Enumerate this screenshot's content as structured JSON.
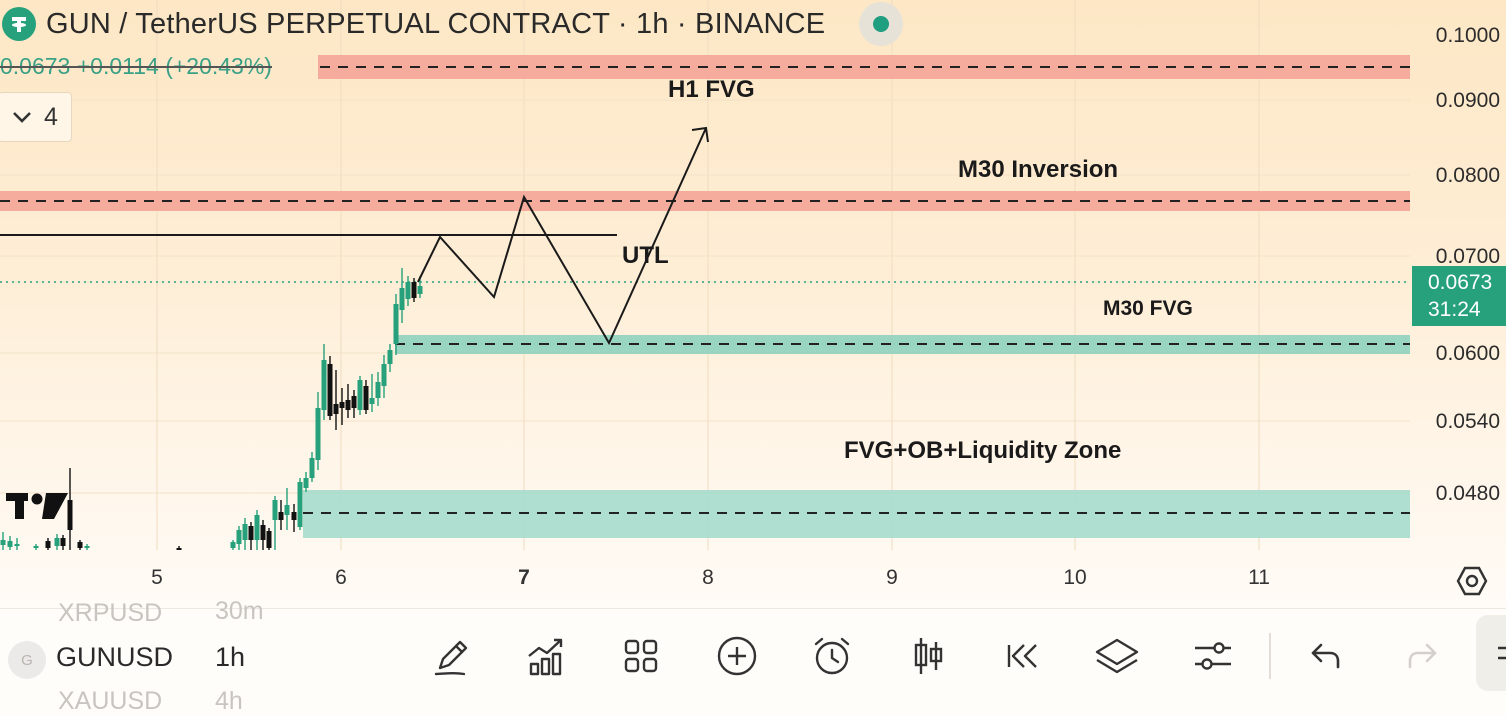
{
  "header": {
    "title": "GUN / TetherUS PERPETUAL CONTRACT · 1h · BINANCE",
    "change": "0.0673 +0.0114 (+20.43%)",
    "indicator_count": "4"
  },
  "annotations": {
    "h1_fvg": "H1 FVG",
    "m30_inversion": "M30 Inversion",
    "utl": "UTL",
    "m30_fvg": "M30 FVG",
    "liquidity_zone": "FVG+OB+Liquidity Zone"
  },
  "price_axis": {
    "labels": [
      "0.1000",
      "0.0900",
      "0.0800",
      "0.0700",
      "0.0600",
      "0.0540",
      "0.0480"
    ],
    "current_price": "0.0673",
    "countdown": "31:24"
  },
  "time_axis": {
    "labels": [
      "5",
      "6",
      "7",
      "8",
      "9",
      "10",
      "11"
    ],
    "bold_label": "7"
  },
  "colors": {
    "bull": "#26a17b",
    "bear": "#111111",
    "red_zone": "#f4a99a",
    "green_zone": "#8fd1bf"
  },
  "toolbar": {
    "symbols": [
      {
        "symbol": "XRPUSD",
        "interval": "30m"
      },
      {
        "symbol": "GUNUSD",
        "interval": "1h"
      },
      {
        "symbol": "XAUUSD",
        "interval": "4h"
      }
    ],
    "active_index": 1,
    "avatar_letter": "G",
    "tools": [
      "pencil-icon",
      "indicators-icon",
      "layout-grid-icon",
      "add-circle-icon",
      "alarm-icon",
      "candle-type-icon",
      "replay-icon",
      "layers-icon",
      "settings-sliders-icon",
      "undo-icon",
      "redo-icon"
    ]
  }
}
